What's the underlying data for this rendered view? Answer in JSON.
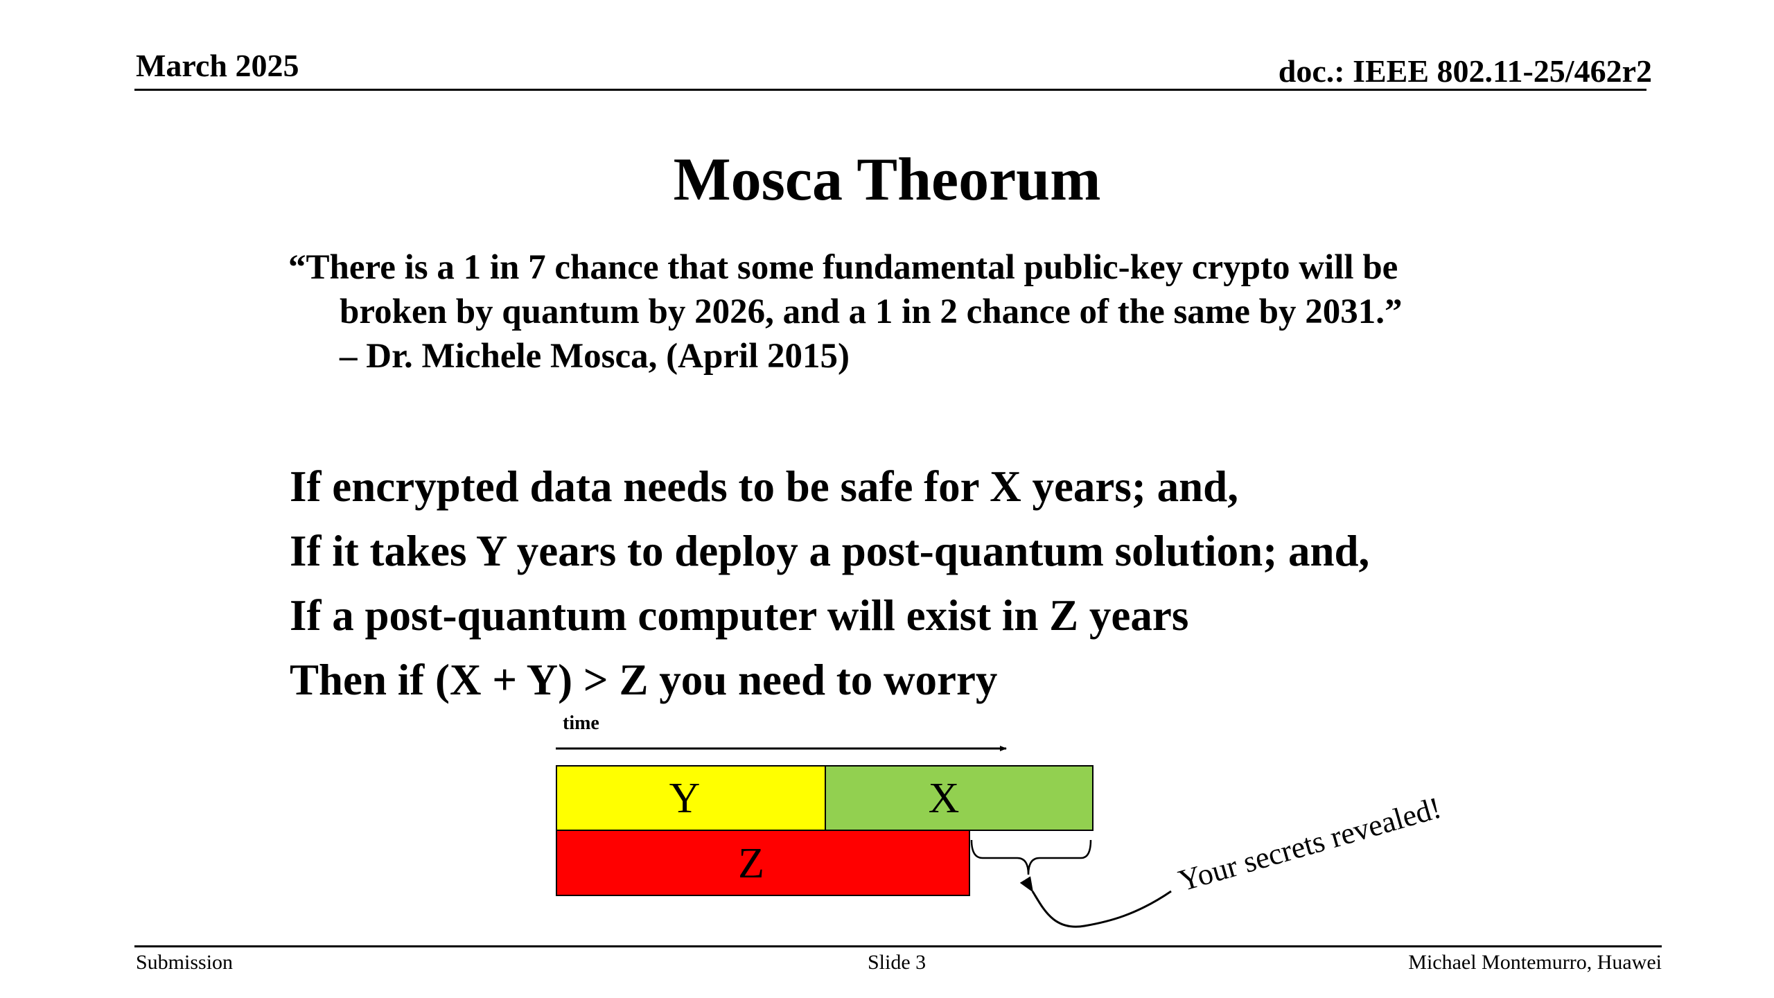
{
  "header": {
    "date": "March 2025",
    "doc": "doc.: IEEE 802.11-25/462r2"
  },
  "title": "Mosca Theorum",
  "quote": {
    "line1": "“There is a 1 in 7 chance that some fundamental public-key crypto will be",
    "line2": "broken by quantum by 2026, and a 1 in 2 chance of the same by 2031.”",
    "attribution": "– Dr. Michele Mosca, (April 2015)"
  },
  "conditions": [
    "If encrypted data needs to be safe for X years; and,",
    "If it takes Y years to deploy a post-quantum solution; and,",
    "If a post-quantum computer will exist in Z years",
    "Then if (X + Y) > Z you need to worry"
  ],
  "diagram": {
    "time_label": "time",
    "y_label": "Y",
    "x_label": "X",
    "z_label": "Z",
    "callout": "Your secrets revealed!",
    "colors": {
      "y": "#ffff00",
      "x": "#92d050",
      "z": "#ff0000"
    }
  },
  "footer": {
    "left": "Submission",
    "center": "Slide 3",
    "right": "Michael Montemurro, Huawei"
  }
}
